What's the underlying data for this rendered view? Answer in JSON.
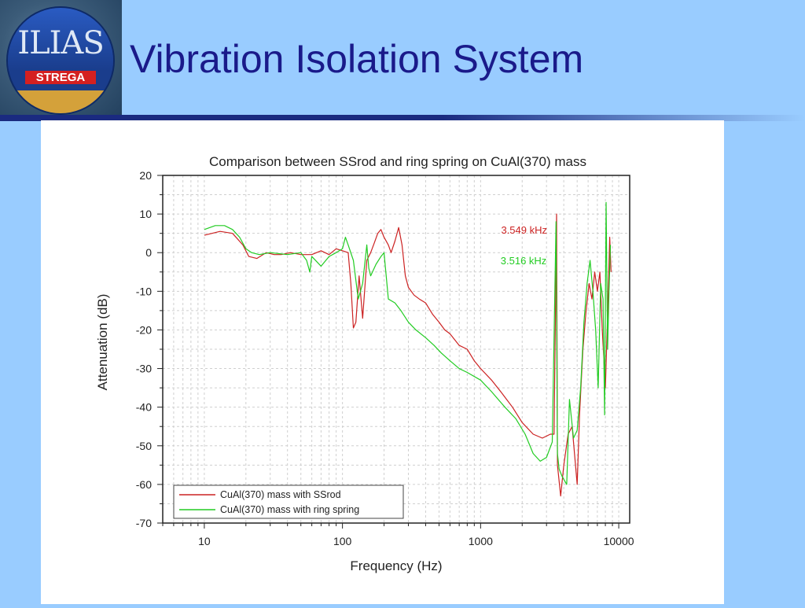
{
  "slide": {
    "title": "Vibration Isolation System",
    "logo_text": "ILIAS",
    "logo_subtext": "STREGA"
  },
  "colors": {
    "background": "#99ccff",
    "title": "#1a1a8a",
    "rule": "#1a2a80",
    "series_ssrod": "#cc2222",
    "series_ring": "#22cc22"
  },
  "chart_data": {
    "type": "line",
    "title": "Comparison between SSrod and ring spring on CuAl(370) mass",
    "xlabel": "Frequency (Hz)",
    "ylabel": "Attenuation (dB)",
    "x_scale": "log",
    "xlim": [
      5,
      12000
    ],
    "ylim": [
      -70,
      20
    ],
    "x_ticks": [
      10,
      100,
      1000,
      10000
    ],
    "x_tick_labels": [
      "10",
      "100",
      "1000",
      "10000"
    ],
    "y_ticks": [
      20,
      10,
      0,
      -10,
      -20,
      -30,
      -40,
      -50,
      -60,
      -70
    ],
    "y_tick_labels": [
      "20",
      "10",
      "0",
      "-10",
      "-20",
      "-30",
      "-40",
      "-50",
      "-60",
      "-70"
    ],
    "grid": true,
    "legend_position": "bottom-left",
    "annotations": [
      {
        "text": "3.549 kHz",
        "x": 3549,
        "y": 6,
        "color": "#cc2222"
      },
      {
        "text": "3.516 kHz",
        "x": 3516,
        "y": -2,
        "color": "#22cc22"
      }
    ],
    "series": [
      {
        "name": "CuAl(370) mass with SSrod",
        "color": "#cc2222",
        "points": [
          [
            10,
            4.5
          ],
          [
            13,
            5.5
          ],
          [
            16,
            5
          ],
          [
            19,
            2
          ],
          [
            21,
            -1
          ],
          [
            24,
            -1.5
          ],
          [
            28,
            0
          ],
          [
            32,
            -0.5
          ],
          [
            36,
            -0.5
          ],
          [
            42,
            0
          ],
          [
            50,
            -0.5
          ],
          [
            60,
            -0.5
          ],
          [
            70,
            0.5
          ],
          [
            80,
            -0.5
          ],
          [
            90,
            1
          ],
          [
            100,
            0.5
          ],
          [
            110,
            0
          ],
          [
            115,
            -8
          ],
          [
            120,
            -19.5
          ],
          [
            125,
            -18
          ],
          [
            132,
            -6
          ],
          [
            140,
            -17
          ],
          [
            150,
            -2
          ],
          [
            160,
            0
          ],
          [
            170,
            2.5
          ],
          [
            180,
            5
          ],
          [
            190,
            6
          ],
          [
            200,
            4
          ],
          [
            215,
            2
          ],
          [
            225,
            0
          ],
          [
            240,
            3
          ],
          [
            255,
            6.5
          ],
          [
            270,
            2
          ],
          [
            285,
            -6
          ],
          [
            300,
            -9
          ],
          [
            330,
            -11
          ],
          [
            360,
            -12
          ],
          [
            400,
            -13
          ],
          [
            450,
            -16
          ],
          [
            500,
            -18
          ],
          [
            550,
            -20
          ],
          [
            600,
            -21
          ],
          [
            700,
            -24
          ],
          [
            800,
            -25
          ],
          [
            900,
            -28
          ],
          [
            1000,
            -30
          ],
          [
            1200,
            -33
          ],
          [
            1400,
            -36
          ],
          [
            1700,
            -40
          ],
          [
            2000,
            -44
          ],
          [
            2400,
            -47
          ],
          [
            2800,
            -48
          ],
          [
            3200,
            -47
          ],
          [
            3400,
            -47
          ],
          [
            3549,
            10
          ],
          [
            3600,
            -55
          ],
          [
            3800,
            -63
          ],
          [
            4000,
            -55
          ],
          [
            4300,
            -47
          ],
          [
            4600,
            -45
          ],
          [
            5000,
            -60
          ],
          [
            5200,
            -42
          ],
          [
            5500,
            -25
          ],
          [
            5800,
            -15
          ],
          [
            6100,
            -8
          ],
          [
            6400,
            -12
          ],
          [
            6700,
            -5
          ],
          [
            7000,
            -10
          ],
          [
            7300,
            -5
          ],
          [
            7600,
            -20
          ],
          [
            8000,
            -35
          ],
          [
            8300,
            -16
          ],
          [
            8600,
            4
          ],
          [
            8800,
            -5
          ]
        ]
      },
      {
        "name": "CuAl(370) mass with ring spring",
        "color": "#22cc22",
        "points": [
          [
            10,
            6
          ],
          [
            12,
            7
          ],
          [
            14,
            7
          ],
          [
            16,
            6
          ],
          [
            18,
            4
          ],
          [
            20,
            1
          ],
          [
            22,
            0
          ],
          [
            25,
            -0.5
          ],
          [
            30,
            0
          ],
          [
            40,
            -0.5
          ],
          [
            50,
            0
          ],
          [
            55,
            -2
          ],
          [
            58,
            -5
          ],
          [
            60,
            -1
          ],
          [
            70,
            -3.5
          ],
          [
            80,
            -1
          ],
          [
            90,
            0
          ],
          [
            100,
            1
          ],
          [
            105,
            4
          ],
          [
            110,
            2
          ],
          [
            120,
            -2
          ],
          [
            130,
            -12
          ],
          [
            140,
            -8
          ],
          [
            150,
            2
          ],
          [
            155,
            -4
          ],
          [
            160,
            -6
          ],
          [
            175,
            -3
          ],
          [
            190,
            -1
          ],
          [
            200,
            0
          ],
          [
            215,
            -12
          ],
          [
            240,
            -13
          ],
          [
            265,
            -15
          ],
          [
            300,
            -18
          ],
          [
            340,
            -20
          ],
          [
            400,
            -22
          ],
          [
            460,
            -24
          ],
          [
            520,
            -26
          ],
          [
            600,
            -28
          ],
          [
            700,
            -30
          ],
          [
            800,
            -31
          ],
          [
            1000,
            -33
          ],
          [
            1200,
            -36
          ],
          [
            1500,
            -40
          ],
          [
            1800,
            -43
          ],
          [
            2100,
            -47
          ],
          [
            2400,
            -52
          ],
          [
            2700,
            -54
          ],
          [
            3000,
            -53
          ],
          [
            3300,
            -49
          ],
          [
            3516,
            8
          ],
          [
            3600,
            -52
          ],
          [
            3700,
            -56
          ],
          [
            3900,
            -58
          ],
          [
            4200,
            -60
          ],
          [
            4400,
            -38
          ],
          [
            4700,
            -48
          ],
          [
            5000,
            -46
          ],
          [
            5300,
            -35
          ],
          [
            5600,
            -18
          ],
          [
            5900,
            -8
          ],
          [
            6200,
            -2
          ],
          [
            6500,
            -10
          ],
          [
            6800,
            -20
          ],
          [
            7100,
            -35
          ],
          [
            7400,
            -8
          ],
          [
            7700,
            -12
          ],
          [
            7900,
            -42
          ],
          [
            8100,
            13
          ],
          [
            8300,
            -25
          ],
          [
            8500,
            -10
          ],
          [
            8700,
            2
          ]
        ]
      }
    ]
  }
}
